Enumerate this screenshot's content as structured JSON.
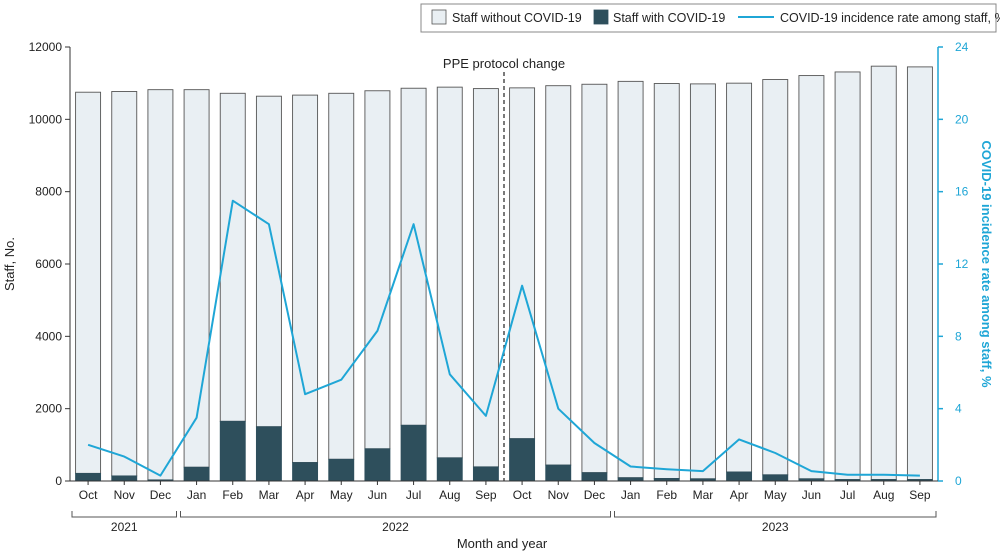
{
  "chart_data": {
    "type": "bar",
    "categories": [
      "Oct",
      "Nov",
      "Dec",
      "Jan",
      "Feb",
      "Mar",
      "Apr",
      "May",
      "Jun",
      "Jul",
      "Aug",
      "Sep",
      "Oct",
      "Nov",
      "Dec",
      "Jan",
      "Feb",
      "Mar",
      "Apr",
      "May",
      "Jun",
      "Jul",
      "Aug",
      "Sep"
    ],
    "year_groups": [
      {
        "label": "2021",
        "start": 0,
        "end": 2
      },
      {
        "label": "2022",
        "start": 3,
        "end": 14
      },
      {
        "label": "2023",
        "start": 15,
        "end": 23
      }
    ],
    "series": [
      {
        "name": "Staff with COVID-19",
        "kind": "bar",
        "color": "#2e4f5c",
        "values": [
          210,
          140,
          30,
          380,
          1650,
          1500,
          510,
          600,
          890,
          1540,
          640,
          390,
          1170,
          440,
          230,
          90,
          70,
          60,
          250,
          170,
          60,
          40,
          40,
          40
        ]
      },
      {
        "name": "Staff without COVID-19",
        "kind": "bar",
        "color": "#e9eff3",
        "values": [
          10540,
          10630,
          10790,
          10440,
          9070,
          9140,
          10160,
          10120,
          9900,
          9320,
          10250,
          10460,
          9700,
          10490,
          10740,
          10960,
          10920,
          10920,
          10750,
          10930,
          11150,
          11270,
          11430,
          11410
        ]
      },
      {
        "name": "COVID-19 incidence rate among staff, %",
        "kind": "line",
        "axis": "right",
        "color": "#1fa6d6",
        "values": [
          2.0,
          1.35,
          0.3,
          3.5,
          15.5,
          14.2,
          4.8,
          5.6,
          8.3,
          14.2,
          5.9,
          3.6,
          10.8,
          4.0,
          2.1,
          0.8,
          0.65,
          0.55,
          2.3,
          1.55,
          0.55,
          0.35,
          0.35,
          0.3
        ]
      }
    ],
    "annotation": {
      "label": "PPE protocol change",
      "between": [
        11,
        12
      ]
    },
    "xlabel": "Month and year",
    "ylabel": "Staff, No.",
    "y2label": "COVID-19 incidence rate among staff, %",
    "ylim": [
      0,
      12000
    ],
    "y2lim": [
      0,
      24
    ],
    "yticks": [
      0,
      2000,
      4000,
      6000,
      8000,
      10000,
      12000
    ],
    "ytick_labels": [
      "0",
      "2000",
      "4000",
      "6000",
      "8000",
      "10000",
      "12000"
    ],
    "y2ticks": [
      0,
      4,
      8,
      12,
      16,
      20,
      24
    ],
    "legend_position": "top-right",
    "grid": false
  }
}
